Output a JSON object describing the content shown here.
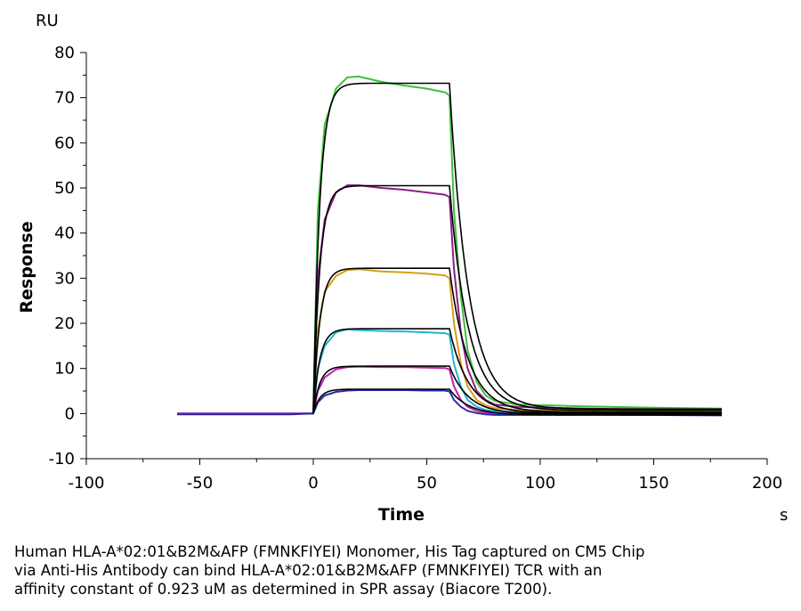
{
  "chart_data": {
    "type": "line",
    "xlabel": "Time",
    "ylabel": "Response",
    "x_unit": "s",
    "y_unit": "RU",
    "xlim": [
      -100,
      200
    ],
    "ylim": [
      -10,
      80
    ],
    "xticks": [
      -100,
      -50,
      0,
      50,
      100,
      150,
      200
    ],
    "yticks": [
      -10,
      0,
      10,
      20,
      30,
      40,
      50,
      60,
      70,
      80
    ],
    "grid": false,
    "series": [
      {
        "color": "#3fbf3f",
        "values": [
          [
            -60,
            0
          ],
          [
            -10,
            0
          ],
          [
            0,
            0
          ],
          [
            2,
            45
          ],
          [
            5,
            64
          ],
          [
            10,
            72
          ],
          [
            15,
            74.5
          ],
          [
            20,
            74.7
          ],
          [
            30,
            73.5
          ],
          [
            40,
            72.7
          ],
          [
            50,
            72
          ],
          [
            58,
            71.2
          ],
          [
            60,
            70.5
          ],
          [
            62,
            45
          ],
          [
            65,
            26
          ],
          [
            68,
            14
          ],
          [
            72,
            7
          ],
          [
            76,
            4
          ],
          [
            80,
            2.8
          ],
          [
            90,
            2
          ],
          [
            120,
            1.6
          ],
          [
            150,
            1.3
          ],
          [
            180,
            1.1
          ]
        ]
      },
      {
        "color": "#8a1f8a",
        "values": [
          [
            -60,
            0
          ],
          [
            -10,
            0
          ],
          [
            0,
            0
          ],
          [
            2,
            30
          ],
          [
            5,
            43
          ],
          [
            10,
            49
          ],
          [
            15,
            50.6
          ],
          [
            20,
            50.6
          ],
          [
            30,
            50
          ],
          [
            40,
            49.6
          ],
          [
            50,
            49
          ],
          [
            58,
            48.5
          ],
          [
            60,
            48
          ],
          [
            62,
            32
          ],
          [
            65,
            18
          ],
          [
            68,
            10
          ],
          [
            72,
            5
          ],
          [
            76,
            3
          ],
          [
            80,
            2
          ],
          [
            90,
            1.5
          ],
          [
            120,
            1.1
          ],
          [
            150,
            0.9
          ],
          [
            180,
            0.8
          ]
        ]
      },
      {
        "color": "#d4a017",
        "values": [
          [
            -60,
            0
          ],
          [
            -10,
            0
          ],
          [
            0,
            0
          ],
          [
            2,
            18
          ],
          [
            5,
            27
          ],
          [
            10,
            30.5
          ],
          [
            15,
            31.8
          ],
          [
            20,
            32
          ],
          [
            30,
            31.5
          ],
          [
            40,
            31.3
          ],
          [
            50,
            31
          ],
          [
            58,
            30.6
          ],
          [
            60,
            30
          ],
          [
            62,
            20
          ],
          [
            65,
            11
          ],
          [
            68,
            6
          ],
          [
            72,
            3
          ],
          [
            76,
            1.8
          ],
          [
            80,
            1.2
          ],
          [
            90,
            0.8
          ],
          [
            120,
            0.5
          ],
          [
            150,
            0.4
          ],
          [
            180,
            0.3
          ]
        ]
      },
      {
        "color": "#1fb5d5",
        "values": [
          [
            -60,
            0
          ],
          [
            -10,
            0
          ],
          [
            0,
            0
          ],
          [
            2,
            10
          ],
          [
            5,
            15
          ],
          [
            10,
            18
          ],
          [
            15,
            18.7
          ],
          [
            20,
            18.5
          ],
          [
            30,
            18.3
          ],
          [
            40,
            18.2
          ],
          [
            50,
            18
          ],
          [
            58,
            17.8
          ],
          [
            60,
            17.5
          ],
          [
            62,
            11
          ],
          [
            65,
            6
          ],
          [
            68,
            3
          ],
          [
            72,
            1.5
          ],
          [
            76,
            0.8
          ],
          [
            80,
            0.5
          ],
          [
            90,
            0.3
          ],
          [
            120,
            0.2
          ],
          [
            150,
            0.1
          ],
          [
            180,
            0
          ]
        ]
      },
      {
        "color": "#c41fa8",
        "values": [
          [
            -60,
            0
          ],
          [
            -10,
            0
          ],
          [
            0,
            0
          ],
          [
            2,
            5
          ],
          [
            5,
            8
          ],
          [
            10,
            9.8
          ],
          [
            15,
            10.3
          ],
          [
            20,
            10.4
          ],
          [
            30,
            10.3
          ],
          [
            40,
            10.3
          ],
          [
            50,
            10.2
          ],
          [
            58,
            10.1
          ],
          [
            60,
            9.8
          ],
          [
            62,
            6
          ],
          [
            65,
            3
          ],
          [
            68,
            1.5
          ],
          [
            72,
            0.6
          ],
          [
            76,
            0.2
          ],
          [
            80,
            0
          ],
          [
            90,
            0
          ],
          [
            120,
            0
          ],
          [
            150,
            -0.1
          ],
          [
            180,
            -0.2
          ]
        ]
      },
      {
        "color": "#2a2aa8",
        "values": [
          [
            -60,
            -0.2
          ],
          [
            -10,
            -0.2
          ],
          [
            0,
            0
          ],
          [
            2,
            2.5
          ],
          [
            5,
            4
          ],
          [
            10,
            4.8
          ],
          [
            15,
            5.1
          ],
          [
            20,
            5.2
          ],
          [
            30,
            5.2
          ],
          [
            40,
            5.2
          ],
          [
            50,
            5.1
          ],
          [
            58,
            5.1
          ],
          [
            60,
            4.9
          ],
          [
            62,
            3
          ],
          [
            65,
            1.5
          ],
          [
            68,
            0.6
          ],
          [
            72,
            0.1
          ],
          [
            76,
            -0.2
          ],
          [
            80,
            -0.3
          ],
          [
            90,
            -0.3
          ],
          [
            120,
            -0.3
          ],
          [
            150,
            -0.3
          ],
          [
            180,
            -0.4
          ]
        ]
      }
    ],
    "fit_curves": {
      "color": "#000000",
      "t_on": 0,
      "t_off": 60,
      "t_end": 180,
      "kon": 0.35,
      "koff": 0.12,
      "rmax": [
        73.2,
        50.5,
        32.2,
        18.8,
        10.5,
        5.4
      ],
      "end_residual": [
        1.0,
        0.7,
        0.3,
        0.1,
        -0.1,
        -0.3
      ]
    }
  },
  "caption": {
    "line1": "Human HLA-A*02:01&B2M&AFP (FMNKFIYEI) Monomer, His Tag captured on CM5 Chip",
    "line2": "via Anti-His Antibody can bind HLA-A*02:01&B2M&AFP (FMNKFIYEI) TCR with an",
    "line3": "affinity constant of 0.923 uM as determined in SPR assay (Biacore T200)."
  }
}
